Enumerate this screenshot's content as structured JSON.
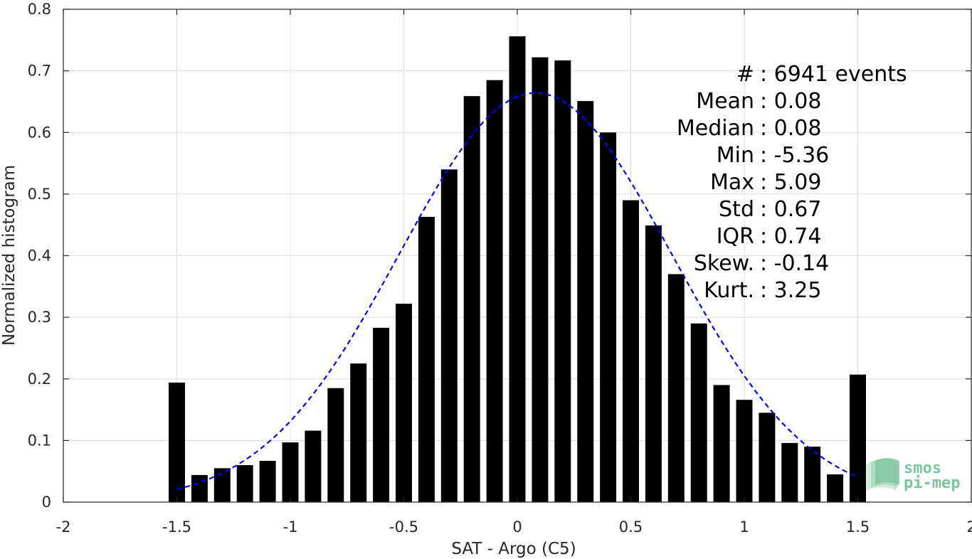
{
  "chart_data": {
    "type": "bar",
    "xlabel": "SAT - Argo (C5)",
    "ylabel": "Normalized histogram",
    "xlim": [
      -2,
      2
    ],
    "ylim": [
      0,
      0.8
    ],
    "x_ticks": [
      -2,
      -1.5,
      -1,
      -0.5,
      0,
      0.5,
      1,
      1.5,
      2
    ],
    "x_tick_labels": [
      "-2",
      "-1.5",
      "-1",
      "-0.5",
      "0",
      "0.5",
      "1",
      "1.5",
      "2"
    ],
    "y_ticks": [
      0,
      0.1,
      0.2,
      0.3,
      0.4,
      0.5,
      0.6,
      0.7,
      0.8
    ],
    "y_tick_labels": [
      "0",
      "0.1",
      "0.2",
      "0.3",
      "0.4",
      "0.5",
      "0.6",
      "0.7",
      "0.8"
    ],
    "grid": true,
    "bar_color": "#000000",
    "fit_color": "#0000ff",
    "x": [
      -1.5,
      -1.4,
      -1.3,
      -1.2,
      -1.1,
      -1.0,
      -0.9,
      -0.8,
      -0.7,
      -0.6,
      -0.5,
      -0.4,
      -0.3,
      -0.2,
      -0.1,
      0.0,
      0.1,
      0.2,
      0.3,
      0.4,
      0.5,
      0.6,
      0.7,
      0.8,
      0.9,
      1.0,
      1.1,
      1.2,
      1.3,
      1.4,
      1.5
    ],
    "values": [
      0.194,
      0.044,
      0.055,
      0.06,
      0.067,
      0.097,
      0.116,
      0.185,
      0.225,
      0.283,
      0.322,
      0.463,
      0.54,
      0.659,
      0.685,
      0.756,
      0.722,
      0.717,
      0.651,
      0.6,
      0.49,
      0.449,
      0.37,
      0.29,
      0.19,
      0.166,
      0.145,
      0.096,
      0.09,
      0.045,
      0.207
    ],
    "fit": {
      "type": "normal",
      "mean": 0.08,
      "std": 0.6,
      "x_range": [
        -1.5,
        1.5
      ],
      "style": "dashed"
    },
    "stats": [
      "#  : 6941 events",
      "Mean : 0.08",
      "Median : 0.08",
      "Min : -5.36",
      "Max : 5.09",
      "Std : 0.67",
      "IQR : 0.74",
      "Skew. : -0.14",
      "Kurt. : 3.25"
    ]
  },
  "logo": {
    "line1": "smos",
    "line2": "pi-mep"
  }
}
